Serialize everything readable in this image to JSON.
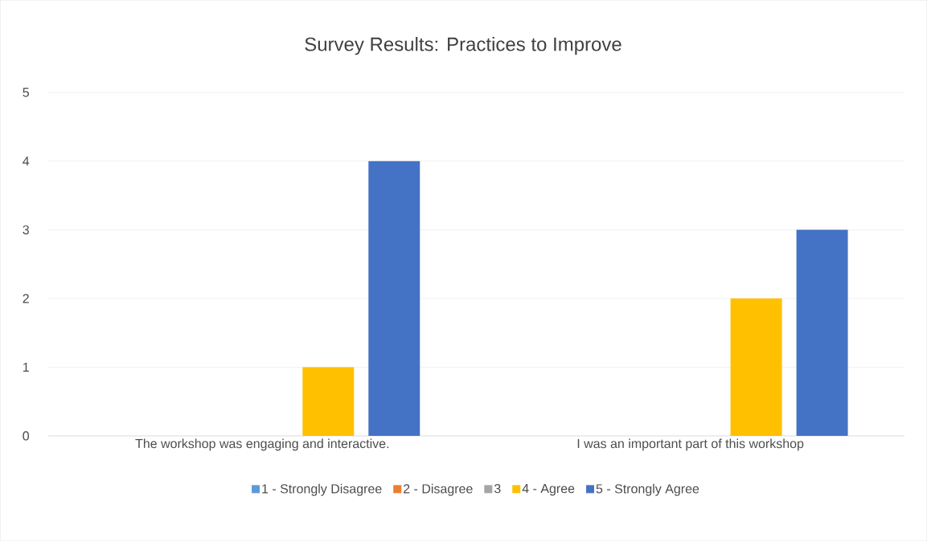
{
  "chart_data": {
    "type": "bar",
    "title": "Survey Results: Practices to Improve",
    "categories": [
      "The workshop was engaging and interactive.",
      "I was an important part of this workshop"
    ],
    "series": [
      {
        "name": "1 - Strongly Disagree",
        "color": "#5b9bd5",
        "values": [
          0,
          0
        ]
      },
      {
        "name": "2 - Disagree",
        "color": "#ed7d31",
        "values": [
          0,
          0
        ]
      },
      {
        "name": "3",
        "color": "#a5a5a5",
        "values": [
          0,
          0
        ]
      },
      {
        "name": "4 - Agree",
        "color": "#ffc000",
        "values": [
          1,
          2
        ]
      },
      {
        "name": "5 - Strongly Agree",
        "color": "#4472c4",
        "values": [
          4,
          3
        ]
      }
    ],
    "ylim": [
      0,
      5
    ],
    "yticks": [
      0,
      1,
      2,
      3,
      4,
      5
    ],
    "grid": "y",
    "legend": "bottom"
  }
}
